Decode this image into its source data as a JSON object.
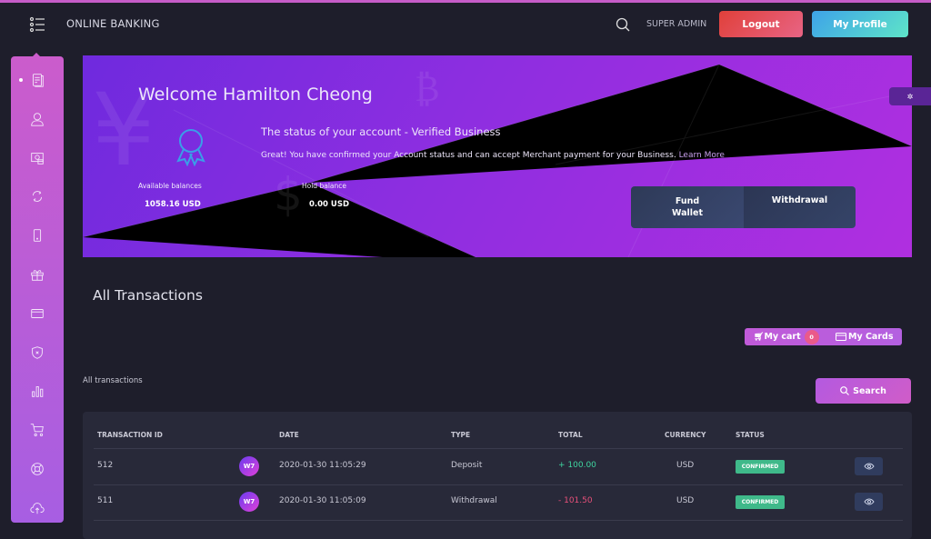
{
  "header": {
    "brand": "ONLINE BANKING",
    "user": "SUPER ADMIN",
    "logout": "Logout",
    "profile": "My Profile"
  },
  "sidebar": {
    "items": [
      "documents-icon",
      "user-icon",
      "money-icon",
      "exchange-icon",
      "mobile-icon",
      "gift-icon",
      "card-icon",
      "shield-icon",
      "chart-icon",
      "cart-icon",
      "support-icon",
      "upload-icon"
    ],
    "active": 0
  },
  "banner": {
    "welcome": "Welcome Hamilton Cheong",
    "status": "The status of your account - Verified Business",
    "message": "Great! You have confirmed your Account status and can accept Merchant payment for your Business.",
    "learn_more": "Learn More",
    "available_label": "Available balances",
    "available_value": "1058.16 USD",
    "hold_label": "Hold balance",
    "hold_value": "0.00 USD",
    "fund_wallet": "Fund Wallet",
    "withdrawal": "Withdrawal"
  },
  "main": {
    "title": "All Transactions",
    "my_cart": "My cart",
    "cart_count": "0",
    "my_cards": "My Cards",
    "subtitle": "All transactions",
    "search": "Search"
  },
  "table": {
    "columns": [
      "TRANSACTION ID",
      "DATE",
      "TYPE",
      "TOTAL",
      "CURRENCY",
      "STATUS"
    ],
    "rows": [
      {
        "id": "512",
        "logo": "W7",
        "date": "2020-01-30 11:05:29",
        "type": "Deposit",
        "total": "+ 100.00",
        "currency": "USD",
        "status": "CONFIRMED"
      },
      {
        "id": "511",
        "logo": "W7",
        "date": "2020-01-30 11:05:09",
        "type": "Withdrawal",
        "total": "- 101.50",
        "currency": "USD",
        "status": "CONFIRMED"
      }
    ]
  },
  "colors": {
    "positive": "#3fd6a0",
    "negative": "#e8507a",
    "confirmed": "#3fb98a",
    "logout": "#e0403a",
    "profile": "#3ea3e8"
  }
}
